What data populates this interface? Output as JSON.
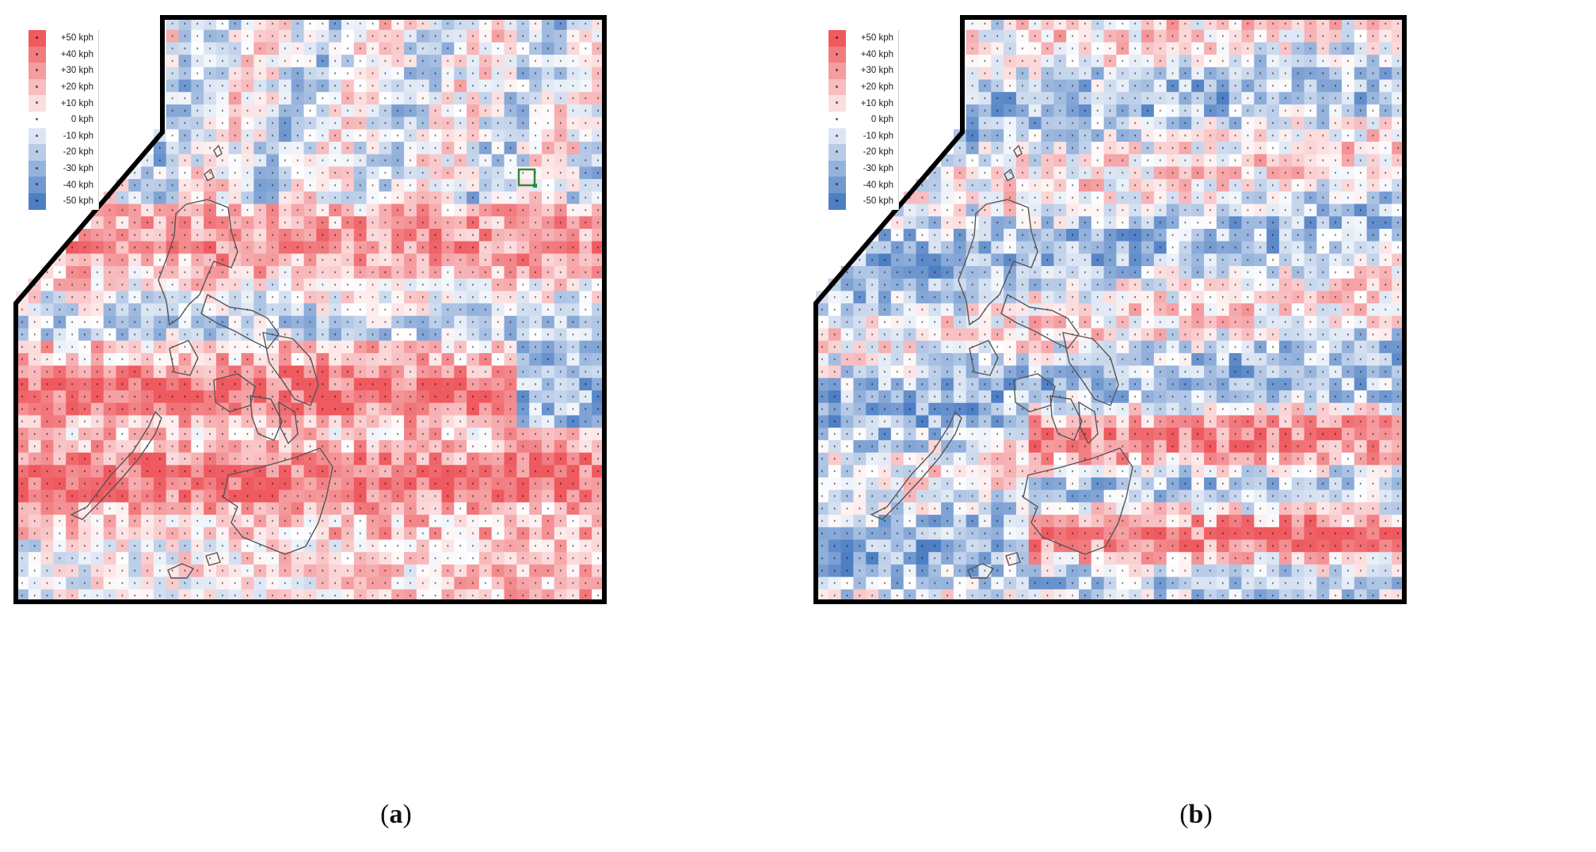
{
  "legend": {
    "entries": [
      {
        "label": "+50 kph",
        "value": 50
      },
      {
        "label": "+40 kph",
        "value": 40
      },
      {
        "label": "+30 kph",
        "value": 30
      },
      {
        "label": "+20 kph",
        "value": 20
      },
      {
        "label": "+10 kph",
        "value": 10
      },
      {
        "label": "0 kph",
        "value": 0
      },
      {
        "label": "-10 kph",
        "value": -10
      },
      {
        "label": "-20 kph",
        "value": -20
      },
      {
        "label": "-30 kph",
        "value": -30
      },
      {
        "label": "-40 kph",
        "value": -40
      },
      {
        "label": "-50 kph",
        "value": -50
      }
    ]
  },
  "colors": {
    "positive_max": "#ee5a5f",
    "zero": "#ffffff",
    "negative_max": "#4e7fc4",
    "frame": "#000000",
    "coastline": "#555555",
    "highlight": "#2f8a3c"
  },
  "panels": [
    {
      "id": "a",
      "caption_open": "(",
      "caption_letter": "a",
      "caption_close": ")",
      "bias": "warm",
      "highlighted_cell": true
    },
    {
      "id": "b",
      "caption_open": "(",
      "caption_letter": "b",
      "caption_close": ")",
      "bias": "mixed",
      "highlighted_cell": false
    }
  ]
}
